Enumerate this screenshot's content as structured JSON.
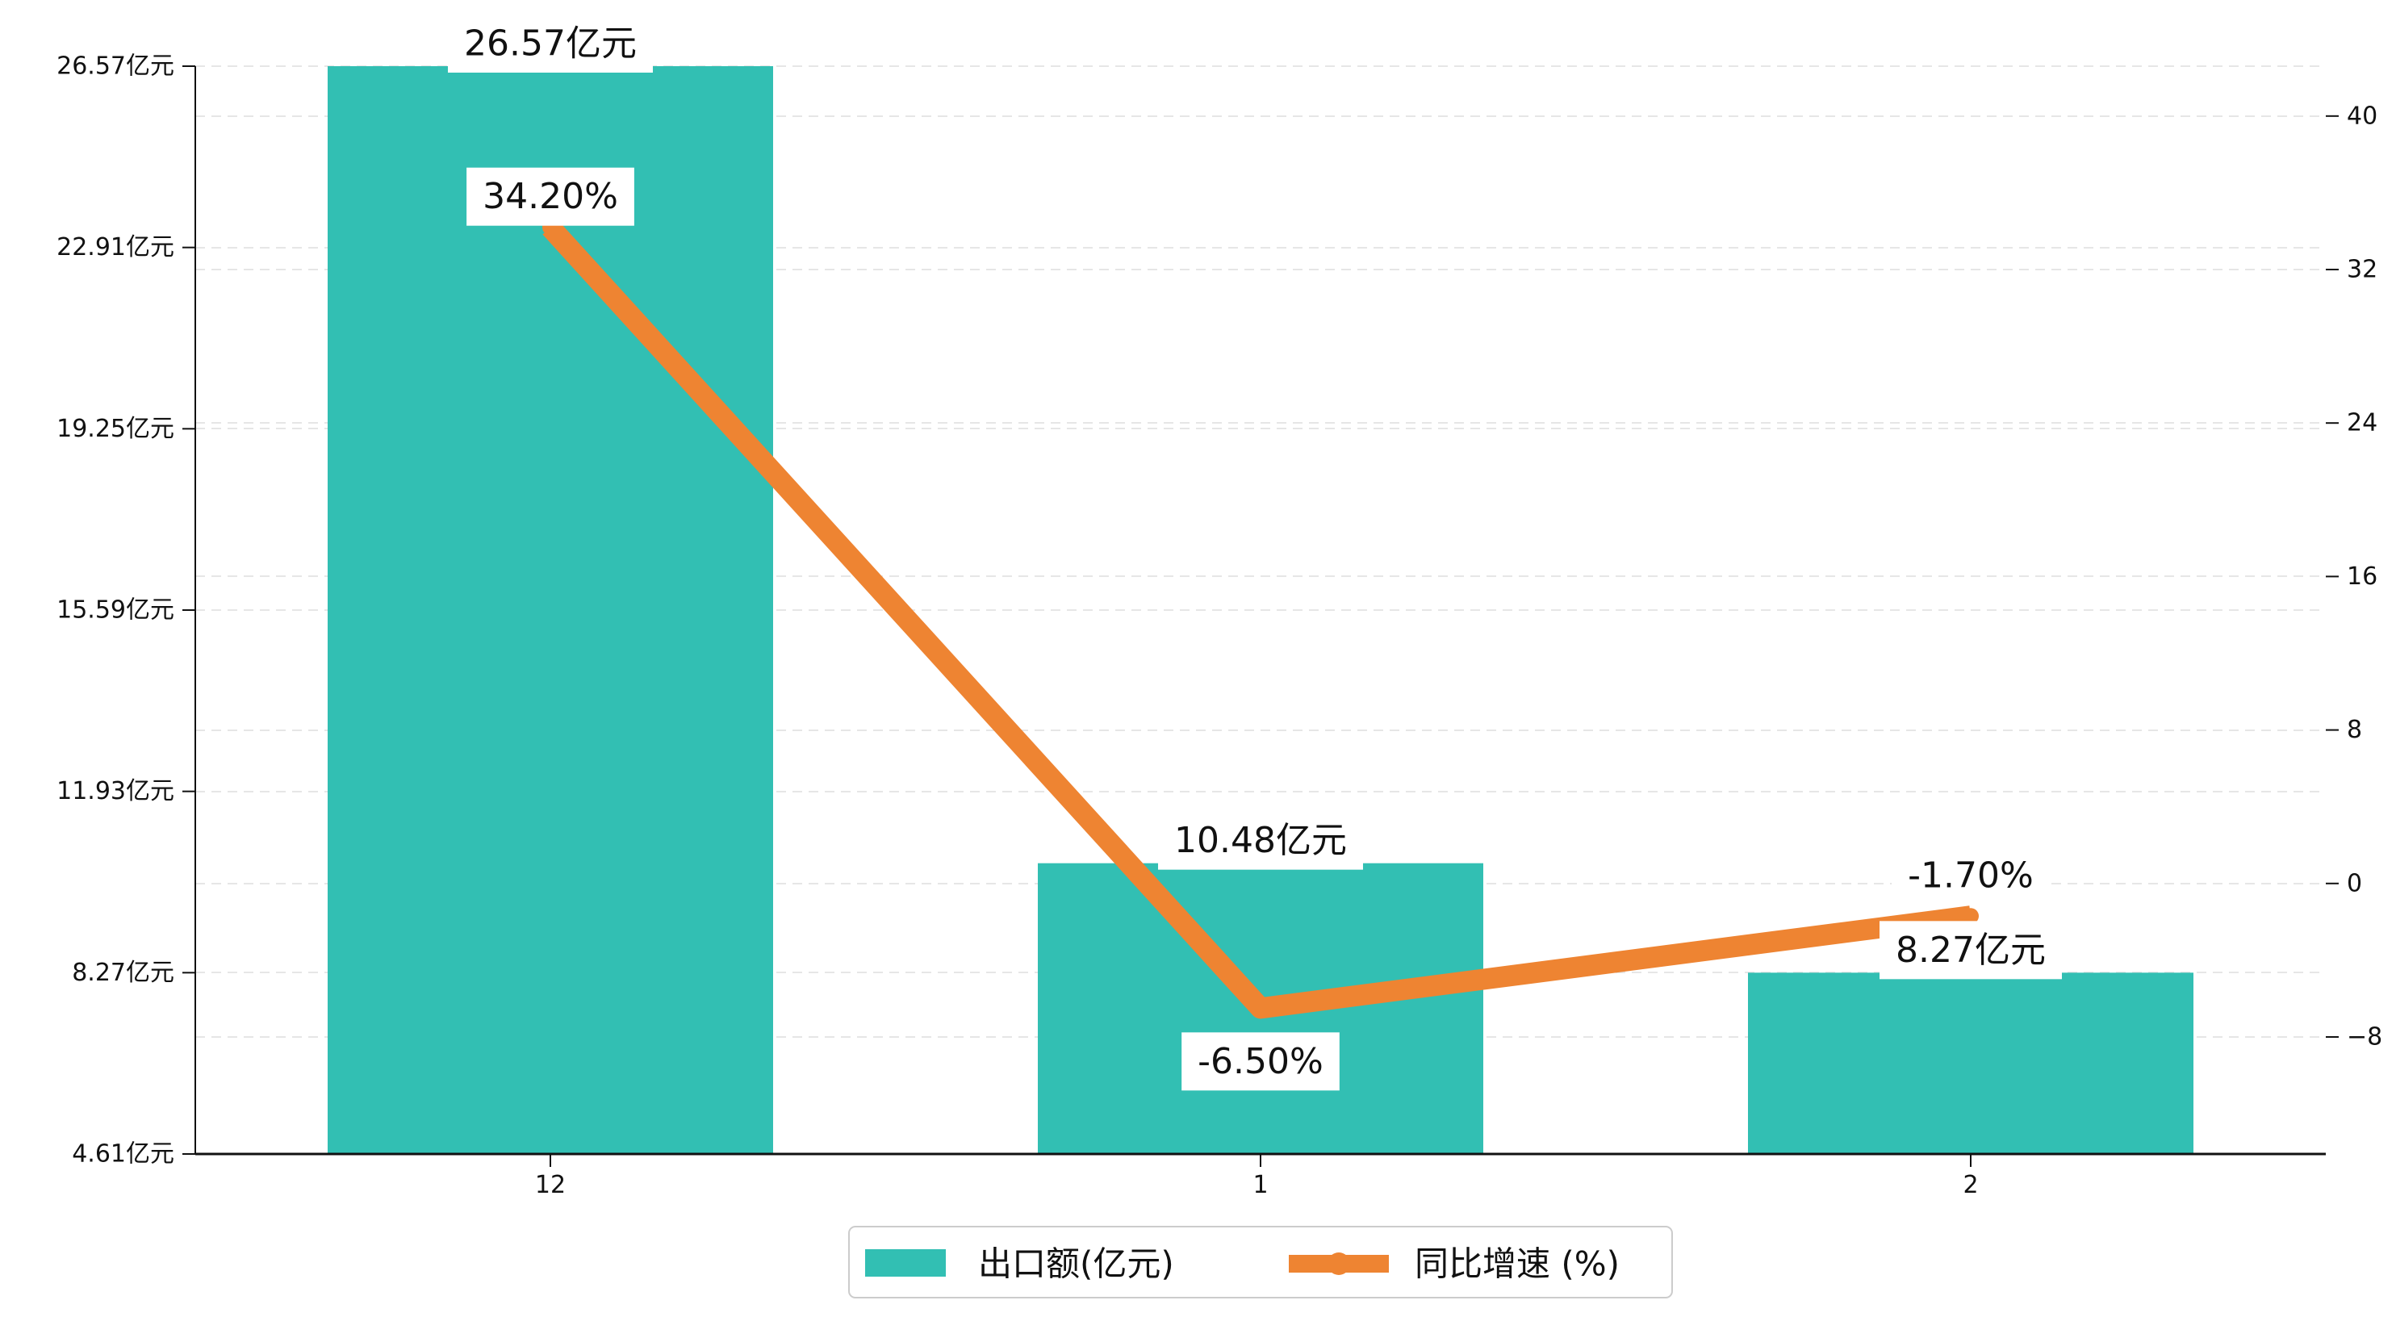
{
  "chart_data": {
    "type": "bar",
    "categories": [
      "12",
      "1",
      "2"
    ],
    "series": [
      {
        "name": "出口额(亿元)",
        "type": "bar",
        "axis": "left",
        "values": [
          26.57,
          10.48,
          8.27
        ],
        "labels": [
          "26.57亿元",
          "10.48亿元",
          "8.27亿元"
        ],
        "color": "#32bfb3"
      },
      {
        "name": "同比增速 (%)",
        "type": "line",
        "axis": "right",
        "values": [
          34.2,
          -6.5,
          -1.7
        ],
        "labels": [
          "34.20%",
          "-6.50%",
          "-1.70%"
        ],
        "color": "#ee8432"
      }
    ],
    "left_axis": {
      "ylim": [
        4.61,
        26.57
      ],
      "ticks": [
        4.61,
        8.27,
        11.93,
        15.59,
        19.25,
        22.91,
        26.57
      ],
      "tick_labels": [
        "4.61亿元",
        "8.27亿元",
        "11.93亿元",
        "15.59亿元",
        "19.25亿元",
        "22.91亿元",
        "26.57亿元"
      ]
    },
    "right_axis": {
      "ylim": [
        -14.1,
        42.6
      ],
      "ticks": [
        -8,
        0,
        8,
        16,
        24,
        32,
        40
      ],
      "tick_labels": [
        "−8",
        "0",
        "8",
        "16",
        "24",
        "32",
        "40"
      ]
    },
    "grid": true,
    "legend_position": "bottom-center",
    "title": "",
    "xlabel": "",
    "ylabel": ""
  }
}
